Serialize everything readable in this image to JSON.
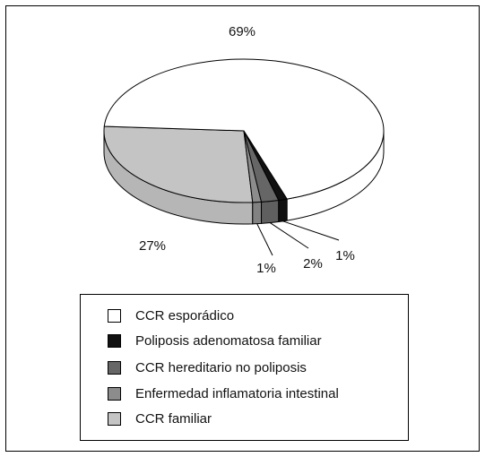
{
  "chart_data": {
    "type": "pie",
    "title": "",
    "legend_position": "bottom",
    "series": [
      {
        "name": "CCR esporádico",
        "value": 69,
        "label": "69%",
        "color": "#ffffff"
      },
      {
        "name": "Poliposis adenomatosa familiar",
        "value": 1,
        "label": "1%",
        "color": "#111111"
      },
      {
        "name": "CCR hereditario no poliposis",
        "value": 2,
        "label": "2%",
        "color": "#666666"
      },
      {
        "name": "Enfermedad inflamatoria intestinal",
        "value": 1,
        "label": "1%",
        "color": "#8c8c8c"
      },
      {
        "name": "CCR familiar",
        "value": 27,
        "label": "27%",
        "color": "#c4c4c4"
      }
    ]
  },
  "legend": {
    "items": [
      {
        "label": "CCR esporádico",
        "color": "#ffffff"
      },
      {
        "label": "Poliposis adenomatosa familiar",
        "color": "#111111"
      },
      {
        "label": "CCR hereditario no poliposis",
        "color": "#666666"
      },
      {
        "label": "Enfermedad inflamatoria intestinal",
        "color": "#8c8c8c"
      },
      {
        "label": "CCR familiar",
        "color": "#c4c4c4"
      }
    ]
  }
}
